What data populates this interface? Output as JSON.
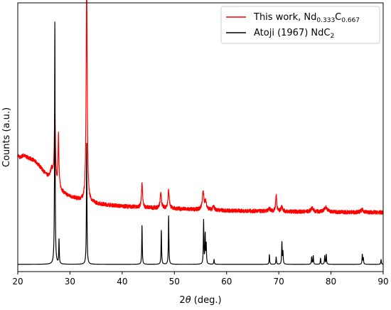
{
  "chart_data": {
    "type": "line",
    "xlabel_var": "θ",
    "xlabel_prefix": "2",
    "xlabel_suffix": " (deg.)",
    "ylabel": "Counts (a.u.)",
    "xlim": [
      20,
      90
    ],
    "x_ticks": [
      20,
      30,
      40,
      50,
      60,
      70,
      80,
      90
    ],
    "y_ticks_shown": false,
    "grid": false,
    "legend_position": "top-right",
    "series": [
      {
        "name": "This work, Nd0.333C0.667",
        "legend_main": "This work, Nd",
        "legend_sub1": "0.333",
        "legend_mid": "C",
        "legend_sub2": "0.667",
        "color": "#ff0000",
        "baseline": [
          [
            20,
            0.45
          ],
          [
            20.5,
            0.44
          ],
          [
            21,
            0.45
          ],
          [
            22,
            0.44
          ],
          [
            23,
            0.43
          ],
          [
            24,
            0.41
          ],
          [
            25,
            0.38
          ],
          [
            26,
            0.35
          ],
          [
            27,
            0.33
          ],
          [
            28,
            0.31
          ],
          [
            29,
            0.29
          ],
          [
            30,
            0.28
          ],
          [
            32,
            0.265
          ],
          [
            34,
            0.255
          ],
          [
            36,
            0.248
          ],
          [
            40,
            0.24
          ],
          [
            44,
            0.235
          ],
          [
            50,
            0.23
          ],
          [
            55,
            0.225
          ],
          [
            60,
            0.222
          ],
          [
            65,
            0.22
          ],
          [
            70,
            0.218
          ],
          [
            75,
            0.217
          ],
          [
            80,
            0.216
          ],
          [
            85,
            0.215
          ],
          [
            90,
            0.214
          ]
        ],
        "peaks": [
          [
            26.5,
            0.05,
            0.35
          ],
          [
            27.1,
            0.3,
            0.12
          ],
          [
            27.8,
            0.22,
            0.1
          ],
          [
            33.2,
            0.92,
            0.12
          ],
          [
            43.8,
            0.1,
            0.12
          ],
          [
            47.4,
            0.06,
            0.15
          ],
          [
            48.9,
            0.075,
            0.15
          ],
          [
            55.5,
            0.07,
            0.2
          ],
          [
            56.0,
            0.03,
            0.2
          ],
          [
            57.5,
            0.015,
            0.2
          ],
          [
            68.2,
            0.01,
            0.25
          ],
          [
            69.5,
            0.07,
            0.12
          ],
          [
            70.6,
            0.02,
            0.2
          ],
          [
            76.4,
            0.015,
            0.3
          ],
          [
            79.0,
            0.02,
            0.35
          ],
          [
            86.0,
            0.01,
            0.3
          ]
        ],
        "noise": 0.008
      },
      {
        "name": "Atoji (1967) NdC2",
        "legend_main": "Atoji (1967) NdC",
        "legend_sub1": "2",
        "color": "#000000",
        "baseline": [
          [
            20,
            0.0
          ],
          [
            90,
            0.0
          ]
        ],
        "peaks": [
          [
            27.1,
            1.0,
            0.06
          ],
          [
            27.9,
            0.1,
            0.06
          ],
          [
            33.2,
            0.5,
            0.06
          ],
          [
            43.8,
            0.16,
            0.06
          ],
          [
            47.5,
            0.14,
            0.06
          ],
          [
            48.9,
            0.2,
            0.06
          ],
          [
            55.6,
            0.18,
            0.06
          ],
          [
            55.9,
            0.12,
            0.06
          ],
          [
            56.1,
            0.08,
            0.06
          ],
          [
            57.6,
            0.02,
            0.06
          ],
          [
            68.2,
            0.04,
            0.06
          ],
          [
            69.5,
            0.03,
            0.06
          ],
          [
            70.6,
            0.09,
            0.06
          ],
          [
            70.8,
            0.05,
            0.06
          ],
          [
            76.3,
            0.03,
            0.06
          ],
          [
            76.6,
            0.035,
            0.06
          ],
          [
            78.0,
            0.025,
            0.06
          ],
          [
            78.8,
            0.035,
            0.06
          ],
          [
            79.1,
            0.04,
            0.06
          ],
          [
            86.0,
            0.04,
            0.06
          ],
          [
            86.2,
            0.025,
            0.06
          ],
          [
            89.6,
            0.02,
            0.06
          ]
        ],
        "noise": 0
      }
    ]
  }
}
